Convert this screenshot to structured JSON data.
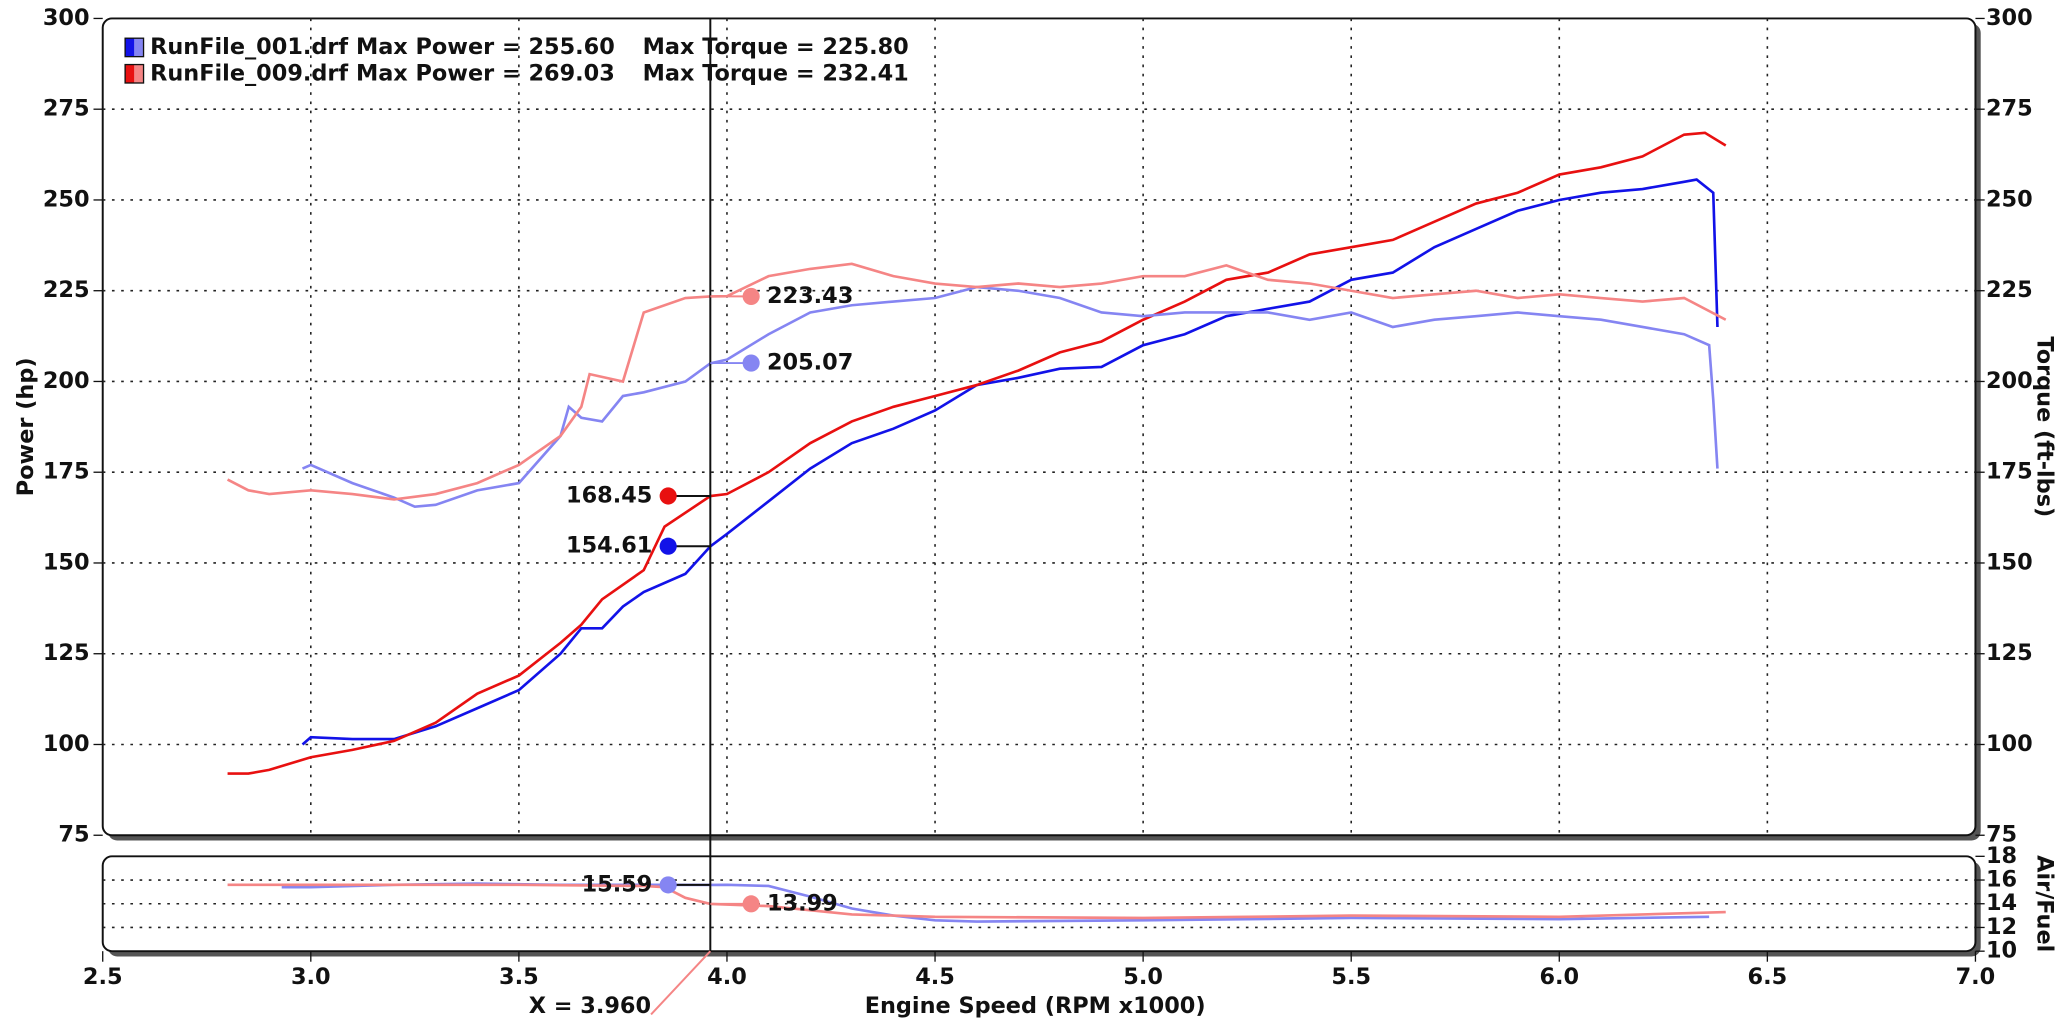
{
  "chart_data": [
    {
      "type": "line",
      "xlim": [
        2.5,
        7.0
      ],
      "xticks": [
        2.5,
        {
          "value": 3,
          "label": "3.0"
        },
        3.5,
        {
          "value": 4,
          "label": "4.0"
        },
        4.5,
        {
          "value": 5,
          "label": "5.0"
        },
        5.5,
        {
          "value": 6,
          "label": "6.0"
        },
        6.5,
        {
          "value": 7,
          "label": "7.0"
        }
      ],
      "ylabel": "Power (hp)",
      "y2label": "Torque (ft-lbs)",
      "ylim": [
        75,
        300
      ],
      "yticks": [
        75,
        100,
        125,
        150,
        175,
        200,
        225,
        250,
        275,
        300
      ],
      "y2lim": [
        75,
        300
      ],
      "y2ticks": [
        75,
        100,
        125,
        150,
        175,
        200,
        225,
        250,
        275,
        300
      ],
      "grid": true,
      "legend_entries": [
        {
          "text": "RunFile_001.drf Max Power = 255.60",
          "torque_text": "Max Torque = 225.80",
          "color": "#1212e8",
          "light_color": "#8585f2"
        },
        {
          "text": "RunFile_009.drf Max Power = 269.03",
          "torque_text": "Max Torque = 232.41",
          "color": "#e81010",
          "light_color": "#f58585"
        }
      ],
      "cursor": {
        "value": 3.96,
        "label": "X = 3.960"
      },
      "series": [
        {
          "name": "RunFile_001.drf",
          "color": "#1212e8",
          "cursor_value": 154.61,
          "x": [
            2.98,
            3.0,
            3.1,
            3.2,
            3.3,
            3.4,
            3.5,
            3.6,
            3.65,
            3.7,
            3.75,
            3.8,
            3.9,
            3.96,
            4.0,
            4.1,
            4.2,
            4.3,
            4.4,
            4.5,
            4.6,
            4.7,
            4.8,
            4.9,
            5.0,
            5.1,
            5.2,
            5.3,
            5.4,
            5.5,
            5.6,
            5.7,
            5.8,
            5.9,
            6.0,
            6.1,
            6.2,
            6.3,
            6.33,
            6.37,
            6.38
          ],
          "values": [
            100,
            102,
            101.5,
            101.5,
            105,
            110,
            115,
            125,
            132,
            132,
            138,
            142,
            147,
            154.6,
            158,
            167,
            176,
            183,
            187,
            192,
            199,
            201,
            203.5,
            204,
            210,
            213,
            218,
            220,
            222,
            228,
            230,
            237,
            242,
            247,
            250,
            252,
            253,
            255,
            255.6,
            252,
            215
          ]
        },
        {
          "name": "RunFile_009.drf",
          "color": "#e81010",
          "cursor_value": 168.45,
          "x": [
            2.8,
            2.85,
            2.9,
            3.0,
            3.1,
            3.2,
            3.3,
            3.4,
            3.5,
            3.6,
            3.65,
            3.7,
            3.8,
            3.85,
            3.96,
            4.0,
            4.1,
            4.2,
            4.3,
            4.4,
            4.5,
            4.6,
            4.7,
            4.8,
            4.9,
            5.0,
            5.1,
            5.2,
            5.3,
            5.4,
            5.5,
            5.6,
            5.7,
            5.8,
            5.9,
            6.0,
            6.1,
            6.2,
            6.3,
            6.35,
            6.4
          ],
          "values": [
            92,
            92,
            93,
            96.5,
            98.5,
            101,
            106,
            114,
            119,
            128,
            133,
            140,
            148,
            160,
            168.45,
            169,
            175,
            183,
            189,
            193,
            196,
            199,
            203,
            208,
            211,
            217,
            222,
            228,
            230,
            235,
            237,
            239,
            244,
            249,
            252,
            257,
            259,
            262,
            268,
            268.5,
            265
          ]
        },
        {
          "name": "RunFile_001.drf",
          "color": "#8585f2",
          "axis": "y2",
          "cursor_value": 205.07,
          "x": [
            2.98,
            3.0,
            3.1,
            3.2,
            3.25,
            3.3,
            3.4,
            3.5,
            3.6,
            3.62,
            3.65,
            3.7,
            3.75,
            3.8,
            3.9,
            3.96,
            4.0,
            4.1,
            4.2,
            4.3,
            4.4,
            4.5,
            4.6,
            4.7,
            4.8,
            4.9,
            5.0,
            5.1,
            5.2,
            5.3,
            5.4,
            5.5,
            5.6,
            5.7,
            5.8,
            5.9,
            6.0,
            6.1,
            6.2,
            6.3,
            6.36,
            6.37,
            6.38
          ],
          "values": [
            176,
            177,
            172,
            168,
            165.5,
            166,
            170,
            172,
            185,
            193,
            190,
            189,
            196,
            197,
            200,
            205,
            206,
            213,
            219,
            221,
            222,
            223,
            226,
            225,
            223,
            219,
            218,
            219,
            219,
            219,
            217,
            219,
            215,
            217,
            218,
            219,
            218,
            217,
            215,
            213,
            210,
            195,
            176
          ]
        },
        {
          "name": "RunFile_009.drf",
          "color": "#f58585",
          "axis": "y2",
          "cursor_value": 223.43,
          "x": [
            2.8,
            2.85,
            2.9,
            3.0,
            3.1,
            3.2,
            3.3,
            3.4,
            3.5,
            3.6,
            3.65,
            3.67,
            3.75,
            3.8,
            3.9,
            3.96,
            4.0,
            4.1,
            4.2,
            4.3,
            4.4,
            4.5,
            4.6,
            4.7,
            4.8,
            4.9,
            5.0,
            5.1,
            5.2,
            5.3,
            5.4,
            5.5,
            5.6,
            5.7,
            5.8,
            5.9,
            6.0,
            6.1,
            6.2,
            6.3,
            6.4
          ],
          "values": [
            173,
            170,
            169,
            170,
            169,
            167.5,
            169,
            172,
            177,
            185,
            193,
            202,
            200,
            219,
            223,
            223.43,
            223.5,
            229,
            231,
            232.4,
            229,
            227,
            226,
            227,
            226,
            227,
            229,
            229,
            232,
            228,
            227,
            225,
            223,
            224,
            225,
            223,
            224,
            223,
            222,
            223,
            217
          ]
        }
      ]
    },
    {
      "type": "line",
      "xlabel": "Engine Speed (RPM x1000)",
      "xlim": [
        2.5,
        7.0
      ],
      "xticks": [
        2.5,
        {
          "value": 3,
          "label": "3.0"
        },
        3.5,
        {
          "value": 4,
          "label": "4.0"
        },
        4.5,
        {
          "value": 5,
          "label": "5.0"
        },
        5.5,
        {
          "value": 6,
          "label": "6.0"
        },
        6.5,
        {
          "value": 7,
          "label": "7.0"
        }
      ],
      "y2label": "Air/Fuel",
      "y2lim": [
        10,
        18
      ],
      "y2ticks": [
        10,
        12,
        14,
        16,
        18
      ],
      "grid": true,
      "series": [
        {
          "name": "RunFile_001.drf",
          "color": "#8585f2",
          "axis": "y2",
          "cursor_value": 15.59,
          "x": [
            2.93,
            3.0,
            3.2,
            3.4,
            3.6,
            3.8,
            3.96,
            4.0,
            4.1,
            4.2,
            4.3,
            4.4,
            4.5,
            4.6,
            5.0,
            5.5,
            6.0,
            6.36
          ],
          "values": [
            15.4,
            15.4,
            15.6,
            15.7,
            15.6,
            15.6,
            15.59,
            15.6,
            15.5,
            14.6,
            13.6,
            13.0,
            12.6,
            12.5,
            12.6,
            12.8,
            12.7,
            12.9
          ]
        },
        {
          "name": "RunFile_009.drf",
          "color": "#f58585",
          "axis": "y2",
          "cursor_value": 13.99,
          "x": [
            2.8,
            3.0,
            3.5,
            3.8,
            3.85,
            3.9,
            3.96,
            4.1,
            4.3,
            4.5,
            5.0,
            5.5,
            6.0,
            6.4
          ],
          "values": [
            15.6,
            15.6,
            15.6,
            15.5,
            15.4,
            14.5,
            13.99,
            13.8,
            13.1,
            12.9,
            12.8,
            13.0,
            12.9,
            13.3
          ]
        }
      ]
    }
  ]
}
